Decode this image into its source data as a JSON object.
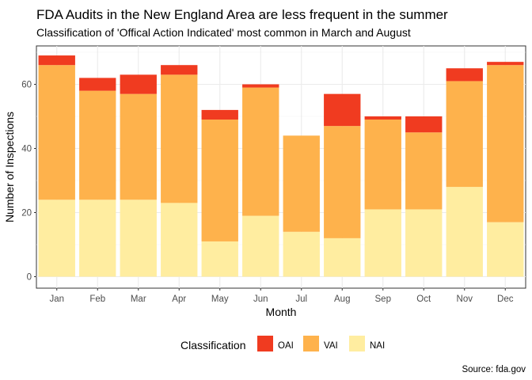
{
  "chart_data": {
    "type": "bar",
    "stacked": true,
    "title": "FDA Audits in the New England Area are less frequent in the summer",
    "subtitle": "Classification of 'Offical Action Indicated' most common in March and August",
    "xlabel": "Month",
    "ylabel": "Number of Inspections",
    "caption": "Source: fda.gov",
    "categories": [
      "Jan",
      "Feb",
      "Mar",
      "Apr",
      "May",
      "Jun",
      "Jul",
      "Aug",
      "Sep",
      "Oct",
      "Nov",
      "Dec"
    ],
    "ylim": [
      0,
      72
    ],
    "yticks": [
      0,
      20,
      40,
      60
    ],
    "grid": true,
    "legend": {
      "title": "Classification",
      "position": "bottom"
    },
    "series": [
      {
        "name": "OAI",
        "color": "#f03b20",
        "values": [
          3,
          4,
          6,
          3,
          3,
          1,
          0,
          10,
          1,
          5,
          4,
          1
        ]
      },
      {
        "name": "VAI",
        "color": "#feb24c",
        "values": [
          42,
          34,
          33,
          40,
          38,
          40,
          30,
          35,
          28,
          24,
          33,
          49
        ]
      },
      {
        "name": "NAI",
        "color": "#ffeda0",
        "values": [
          24,
          24,
          24,
          23,
          11,
          19,
          14,
          12,
          21,
          21,
          28,
          17
        ]
      }
    ]
  }
}
